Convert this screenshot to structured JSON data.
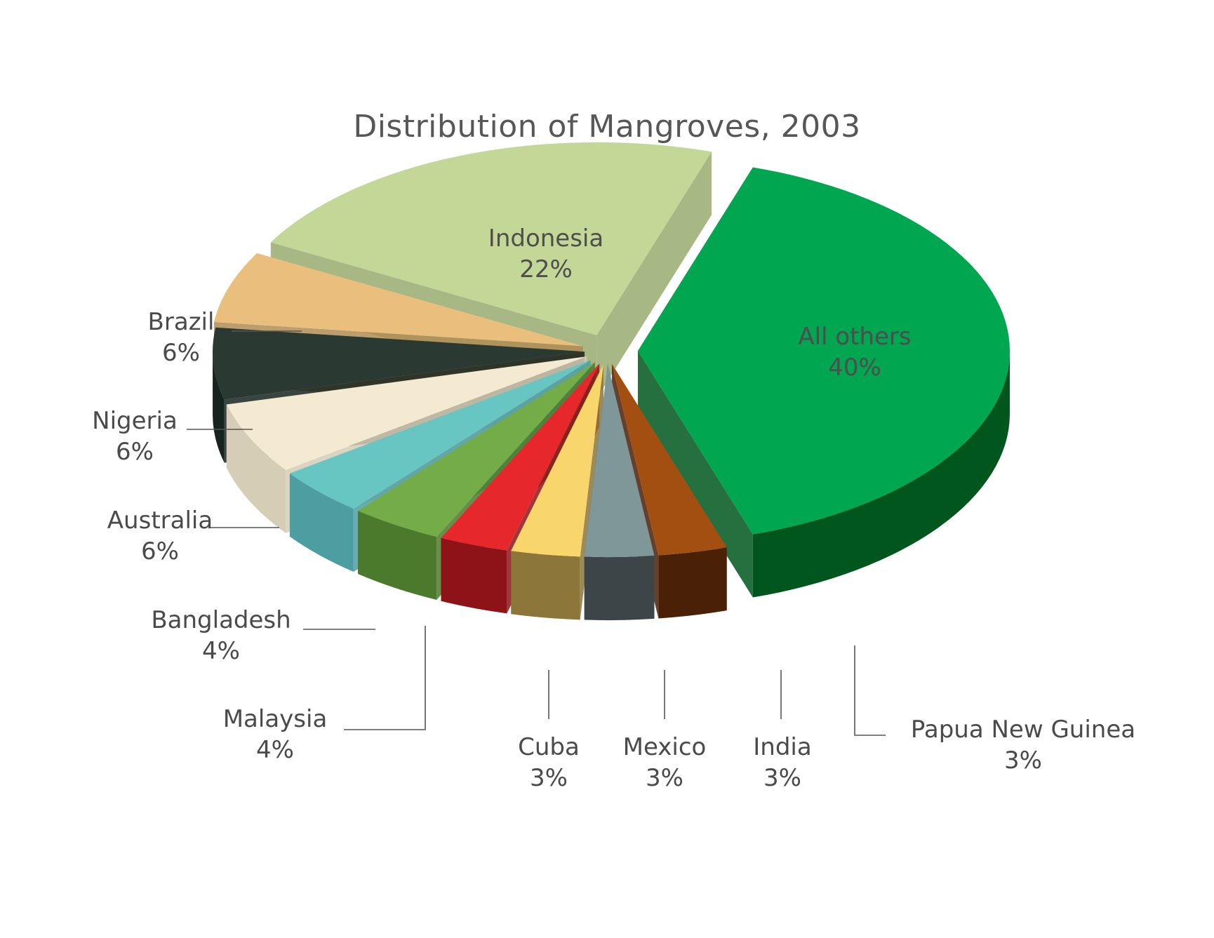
{
  "chart_data": {
    "type": "pie",
    "title": "Distribution of Mangroves, 2003",
    "style": "3d-exploded",
    "slices": [
      {
        "label": "All others",
        "value_label": "40%",
        "value": 40,
        "color": "#00A650",
        "side": "#00561D"
      },
      {
        "label": "Papua New Guinea",
        "value_label": "3%",
        "value": 3,
        "color": "#A34F12",
        "side": "#4A2006"
      },
      {
        "label": "India",
        "value_label": "3%",
        "value": 3,
        "color": "#7F9799",
        "side": "#3C4648"
      },
      {
        "label": "Mexico",
        "value_label": "3%",
        "value": 3,
        "color": "#F8D66C",
        "side": "#8C7639"
      },
      {
        "label": "Cuba",
        "value_label": "3%",
        "value": 3,
        "color": "#E6282C",
        "side": "#8E1318"
      },
      {
        "label": "Malaysia",
        "value_label": "4%",
        "value": 4,
        "color": "#74AD48",
        "side": "#4B7A2C"
      },
      {
        "label": "Bangladesh",
        "value_label": "4%",
        "value": 4,
        "color": "#68C6C2",
        "side": "#4C9EA1"
      },
      {
        "label": "Australia",
        "value_label": "6%",
        "value": 6,
        "color": "#F4EAD2",
        "side": "#D6CDB7"
      },
      {
        "label": "Nigeria",
        "value_label": "6%",
        "value": 6,
        "color": "#2A3A33",
        "side": "#17231E"
      },
      {
        "label": "Brazil",
        "value_label": "6%",
        "value": 6,
        "color": "#EABF7D",
        "side": "#B08C55"
      },
      {
        "label": "Indonesia",
        "value_label": "22%",
        "value": 22,
        "color": "#C3D796",
        "side": "#98AB6E"
      }
    ]
  }
}
